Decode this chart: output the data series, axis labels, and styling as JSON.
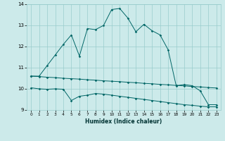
{
  "xlabel": "Humidex (Indice chaleur)",
  "bg_color": "#cceaea",
  "grid_color": "#99cccc",
  "line_color": "#006666",
  "xlim": [
    -0.5,
    23.5
  ],
  "ylim": [
    9,
    14
  ],
  "xticks": [
    0,
    1,
    2,
    3,
    4,
    5,
    6,
    7,
    8,
    9,
    10,
    11,
    12,
    13,
    14,
    15,
    16,
    17,
    18,
    19,
    20,
    21,
    22,
    23
  ],
  "yticks": [
    9,
    10,
    11,
    12,
    13,
    14
  ],
  "line1_x": [
    0,
    1,
    2,
    3,
    4,
    5,
    6,
    7,
    8,
    9,
    10,
    11,
    12,
    13,
    14,
    15,
    16,
    17,
    18,
    19,
    20,
    21,
    22,
    23
  ],
  "line1_y": [
    10.6,
    10.6,
    11.1,
    11.6,
    12.1,
    12.55,
    11.55,
    12.85,
    12.8,
    13.0,
    13.75,
    13.8,
    13.35,
    12.7,
    13.05,
    12.75,
    12.55,
    11.85,
    10.15,
    10.2,
    10.15,
    9.9,
    9.25,
    9.25
  ],
  "line2_x": [
    0,
    1,
    2,
    3,
    4,
    5,
    6,
    7,
    8,
    9,
    10,
    11,
    12,
    13,
    14,
    15,
    16,
    17,
    18,
    19,
    20,
    21,
    22,
    23
  ],
  "line2_y": [
    10.6,
    10.58,
    10.55,
    10.53,
    10.5,
    10.48,
    10.46,
    10.43,
    10.41,
    10.38,
    10.36,
    10.34,
    10.31,
    10.29,
    10.26,
    10.24,
    10.21,
    10.19,
    10.16,
    10.14,
    10.11,
    10.09,
    10.06,
    10.04
  ],
  "line3_x": [
    0,
    1,
    2,
    3,
    4,
    5,
    6,
    7,
    8,
    9,
    10,
    11,
    12,
    13,
    14,
    15,
    16,
    17,
    18,
    19,
    20,
    21,
    22,
    23
  ],
  "line3_y": [
    10.05,
    10.0,
    9.98,
    10.0,
    9.98,
    9.45,
    9.65,
    9.7,
    9.78,
    9.75,
    9.7,
    9.65,
    9.6,
    9.55,
    9.5,
    9.45,
    9.4,
    9.35,
    9.3,
    9.25,
    9.22,
    9.18,
    9.15,
    9.15
  ]
}
